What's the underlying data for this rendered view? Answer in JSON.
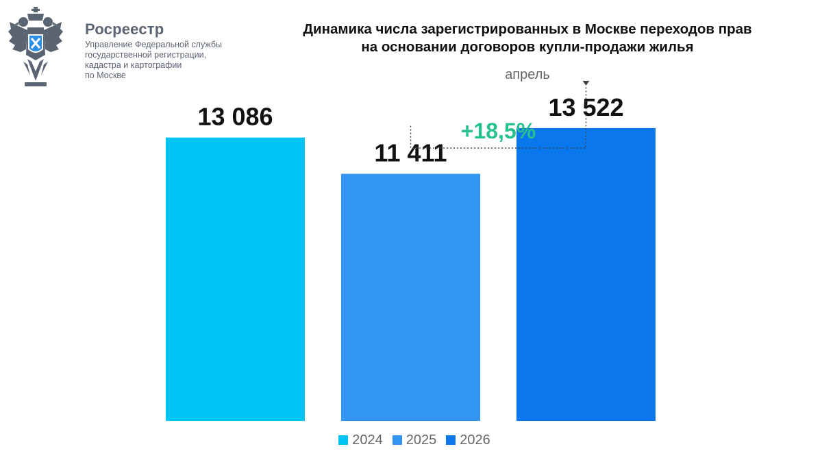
{
  "header": {
    "org_name": "Росреестр",
    "org_sub": [
      "Управление Федеральной службы",
      "государственной регистрации,",
      "кадастра и картографии",
      "по Москве"
    ],
    "logo_icon": "double-headed-eagle-emblem-icon"
  },
  "chart_data": {
    "type": "bar",
    "title": "Динамика числа зарегистрированных в Москве переходов прав на основании договоров купли-продажи жилья",
    "title_lines": [
      "Динамика числа зарегистрированных в Москве переходов прав",
      "на основании договоров купли-продажи жилья"
    ],
    "subtitle": "апрель",
    "categories": [
      "2024",
      "2025",
      "2026"
    ],
    "values": [
      13086,
      11411,
      13522
    ],
    "value_labels": [
      "13 086",
      "11 411",
      "13 522"
    ],
    "colors": [
      "#00c5f4",
      "#3296f0",
      "#0a78ec"
    ],
    "annotation": {
      "text": "+18,5%",
      "from": "2025",
      "to": "2026",
      "color": "#27c190"
    },
    "legend": [
      "2024",
      "2025",
      "2026"
    ],
    "legend_position": "bottom",
    "ylim": [
      0,
      14500
    ],
    "grid": false
  }
}
